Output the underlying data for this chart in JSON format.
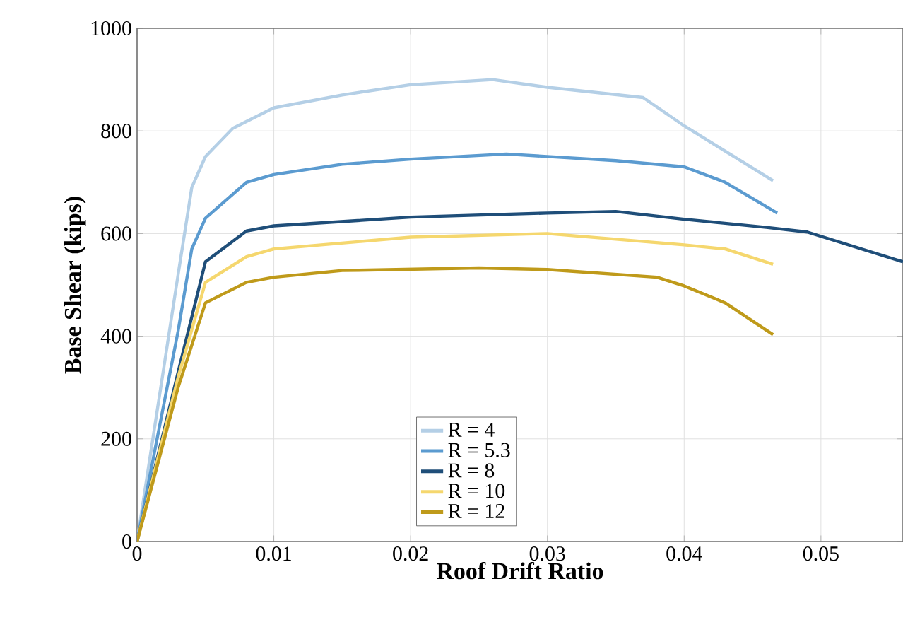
{
  "chart_data": {
    "type": "line",
    "xlabel": "Roof Drift Ratio",
    "ylabel": "Base Shear (kips)",
    "xlim": [
      0,
      0.056
    ],
    "ylim": [
      0,
      1000
    ],
    "xticks": [
      0,
      0.01,
      0.02,
      0.03,
      0.04,
      0.05
    ],
    "yticks": [
      0,
      200,
      400,
      600,
      800,
      1000
    ],
    "grid": true,
    "legend": "bottom",
    "line_style": "solid",
    "marker": "none",
    "series": [
      {
        "name": "R = 4",
        "color": "#b4cfe6",
        "x": [
          0,
          0.003,
          0.004,
          0.005,
          0.007,
          0.01,
          0.015,
          0.02,
          0.026,
          0.03,
          0.037,
          0.04,
          0.0465
        ],
        "values": [
          0,
          520,
          690,
          750,
          805,
          845,
          870,
          890,
          900,
          885,
          865,
          810,
          703
        ]
      },
      {
        "name": "R = 5.3",
        "color": "#5b9bd0",
        "x": [
          0,
          0.003,
          0.004,
          0.005,
          0.008,
          0.01,
          0.015,
          0.02,
          0.027,
          0.035,
          0.04,
          0.043,
          0.0468
        ],
        "values": [
          0,
          410,
          570,
          630,
          700,
          715,
          735,
          745,
          755,
          742,
          730,
          700,
          640
        ]
      },
      {
        "name": "R = 8",
        "color": "#1f4e79",
        "x": [
          0,
          0.003,
          0.005,
          0.008,
          0.01,
          0.02,
          0.03,
          0.035,
          0.04,
          0.046,
          0.049,
          0.056
        ],
        "values": [
          0,
          330,
          545,
          605,
          615,
          632,
          640,
          643,
          628,
          612,
          603,
          545
        ]
      },
      {
        "name": "R = 10",
        "color": "#f5d76e",
        "x": [
          0,
          0.003,
          0.005,
          0.008,
          0.01,
          0.02,
          0.03,
          0.04,
          0.043,
          0.0465
        ],
        "values": [
          0,
          320,
          505,
          555,
          570,
          593,
          600,
          578,
          570,
          540
        ]
      },
      {
        "name": "R = 12",
        "color": "#bf9a1a",
        "x": [
          0,
          0.003,
          0.005,
          0.008,
          0.01,
          0.015,
          0.025,
          0.03,
          0.038,
          0.04,
          0.043,
          0.0465
        ],
        "values": [
          0,
          300,
          465,
          505,
          515,
          528,
          533,
          530,
          515,
          498,
          465,
          403
        ]
      }
    ]
  }
}
